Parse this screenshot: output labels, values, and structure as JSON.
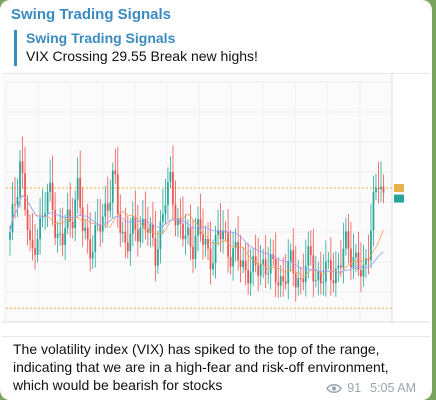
{
  "channel": {
    "name": "Swing Trading Signals"
  },
  "reply": {
    "author": "Swing Trading Signals",
    "text": "VIX Crossing 29.55 Break new highs!"
  },
  "message": {
    "text": "The volatility index (VIX) has spiked to the top of the range, indicating that we are in a high-fear and risk-off environment, which would be bearish for stocks",
    "views": "91",
    "time": "5:05 AM"
  },
  "colors": {
    "accent": "#3a8bc2",
    "up": "#26a69a",
    "down": "#ef5350"
  },
  "chart_data": {
    "type": "line",
    "series_style": "candlestick",
    "yrange": [
      10,
      45
    ],
    "values": [
      22,
      28,
      34,
      26,
      19,
      23,
      24,
      27,
      30,
      22,
      21,
      25,
      26,
      29,
      24,
      22,
      21,
      23,
      26,
      28,
      31,
      25,
      22,
      22,
      23,
      24,
      25,
      22,
      20,
      24,
      28,
      30,
      26,
      23,
      22,
      21,
      24,
      22,
      20,
      20,
      22,
      23,
      21,
      20,
      19,
      18,
      18,
      17,
      18,
      19,
      18,
      17,
      16,
      17,
      18,
      17,
      16,
      18,
      19,
      17,
      16,
      17,
      18,
      17,
      19,
      22,
      20,
      18,
      16,
      21,
      27,
      30,
      28
    ]
  }
}
